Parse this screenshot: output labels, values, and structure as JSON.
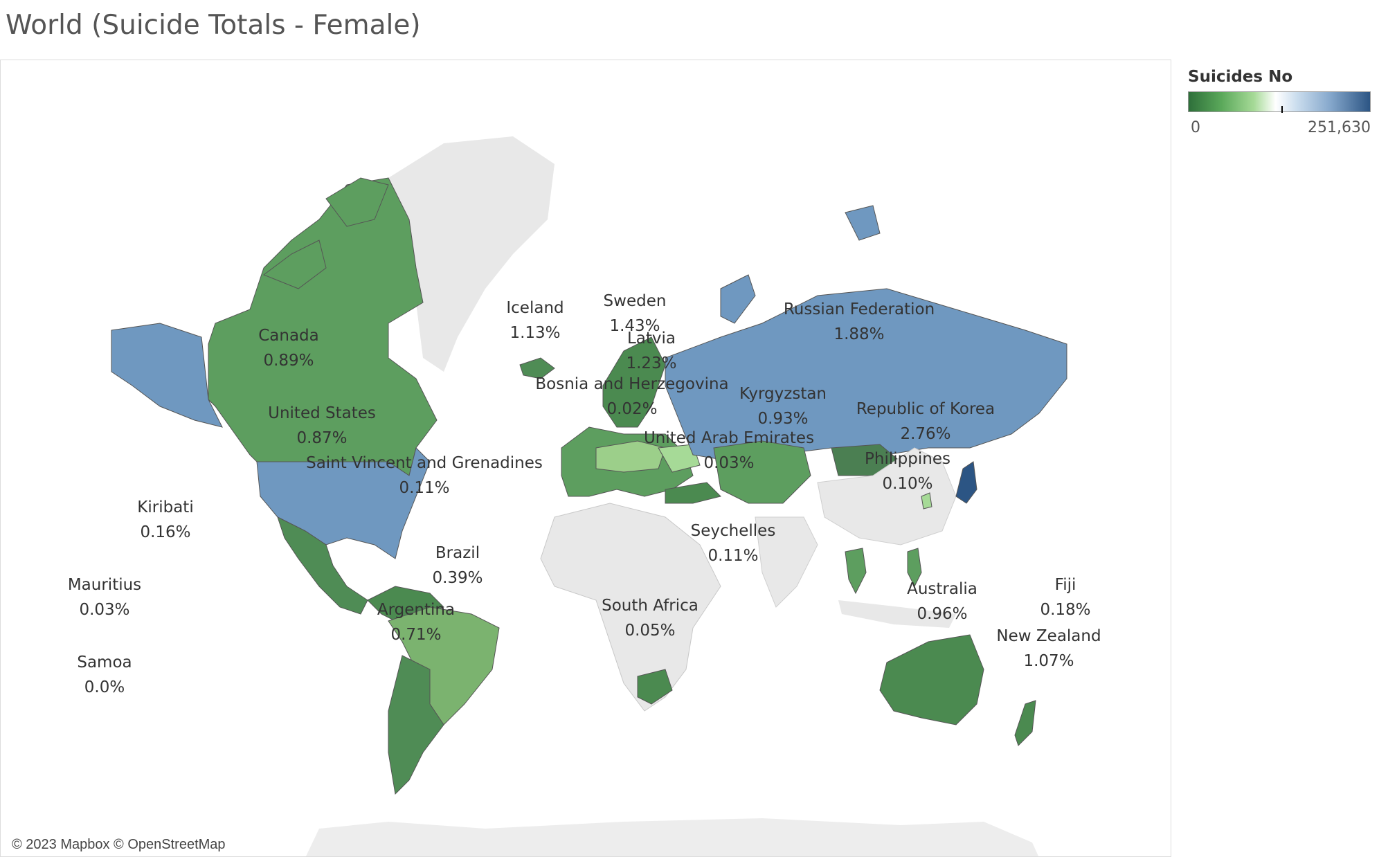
{
  "title": "World (Suicide Totals - Female)",
  "attribution": "© 2023 Mapbox © OpenStreetMap",
  "legend": {
    "title": "Suicides No",
    "min_label": "0",
    "max_label": "251,630",
    "min_color": "#2e6f3a",
    "mid_color": "#ffffff",
    "max_color": "#2c5584"
  },
  "countries": [
    {
      "name": "Canada",
      "pct": "0.89%"
    },
    {
      "name": "United States",
      "pct": "0.87%"
    },
    {
      "name": "Iceland",
      "pct": "1.13%"
    },
    {
      "name": "Sweden",
      "pct": "1.43%"
    },
    {
      "name": "Latvia",
      "pct": "1.23%"
    },
    {
      "name": "Russian Federation",
      "pct": "1.88%"
    },
    {
      "name": "Bosnia and Herzegovina",
      "pct": "0.02%"
    },
    {
      "name": "Kyrgyzstan",
      "pct": "0.93%"
    },
    {
      "name": "Republic of Korea",
      "pct": "2.76%"
    },
    {
      "name": "United Arab Emirates",
      "pct": "0.03%"
    },
    {
      "name": "Philippines",
      "pct": "0.10%"
    },
    {
      "name": "Saint Vincent and Grenadines",
      "pct": "0.11%"
    },
    {
      "name": "Kiribati",
      "pct": "0.16%"
    },
    {
      "name": "Seychelles",
      "pct": "0.11%"
    },
    {
      "name": "Brazil",
      "pct": "0.39%"
    },
    {
      "name": "Australia",
      "pct": "0.96%"
    },
    {
      "name": "Argentina",
      "pct": "0.71%"
    },
    {
      "name": "South Africa",
      "pct": "0.05%"
    },
    {
      "name": "Fiji",
      "pct": "0.18%"
    },
    {
      "name": "New Zealand",
      "pct": "1.07%"
    },
    {
      "name": "Mauritius",
      "pct": "0.03%"
    },
    {
      "name": "Samoa",
      "pct": "0.0%"
    }
  ]
}
